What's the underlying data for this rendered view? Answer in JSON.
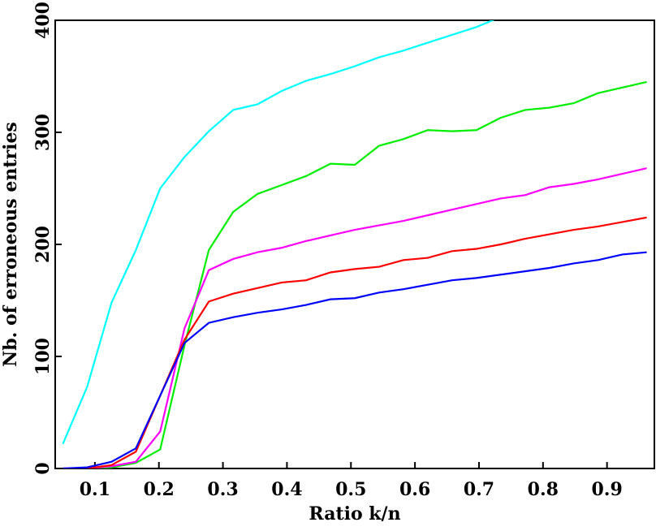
{
  "chart_data": {
    "type": "line",
    "xlabel": "Ratio k/n",
    "ylabel": "Nb. of erroneous entries",
    "x": [
      0.05,
      0.088,
      0.126,
      0.164,
      0.202,
      0.24,
      0.278,
      0.316,
      0.354,
      0.392,
      0.43,
      0.468,
      0.506,
      0.544,
      0.582,
      0.62,
      0.658,
      0.696,
      0.734,
      0.772,
      0.81,
      0.848,
      0.886,
      0.924,
      0.962
    ],
    "series": [
      {
        "color": "#00ffff",
        "values": [
          22,
          73,
          148,
          195,
          250,
          278,
          301,
          320,
          325,
          337,
          346,
          352,
          359,
          367,
          373,
          380,
          387,
          394,
          403,
          null,
          null,
          null,
          null,
          null,
          null
        ]
      },
      {
        "color": "#00ee00",
        "values": [
          0,
          0,
          1,
          5,
          17,
          110,
          195,
          229,
          245,
          253,
          261,
          272,
          271,
          288,
          294,
          302,
          301,
          302,
          313,
          320,
          322,
          326,
          335,
          340,
          345
        ]
      },
      {
        "color": "#ff00ff",
        "values": [
          0,
          0,
          2,
          6,
          33,
          125,
          177,
          187,
          193,
          197,
          203,
          208,
          213,
          217,
          221,
          226,
          231,
          236,
          241,
          244,
          251,
          254,
          258,
          263,
          268
        ]
      },
      {
        "color": "#ff0000",
        "values": [
          0,
          0,
          3,
          15,
          65,
          115,
          149,
          156,
          161,
          166,
          168,
          175,
          178,
          180,
          186,
          188,
          194,
          196,
          200,
          205,
          209,
          213,
          216,
          220,
          224
        ]
      },
      {
        "color": "#0000ff",
        "values": [
          0,
          1,
          6,
          18,
          65,
          112,
          130,
          135,
          139,
          142,
          146,
          151,
          152,
          157,
          160,
          164,
          168,
          170,
          173,
          176,
          179,
          183,
          186,
          191,
          193
        ]
      }
    ],
    "xlim": [
      0.038,
      0.974
    ],
    "ylim": [
      0,
      400
    ],
    "xticks": [
      0.1,
      0.2,
      0.3,
      0.4,
      0.5,
      0.6,
      0.7,
      0.8,
      0.9
    ],
    "yticks": [
      0,
      100,
      200,
      300,
      400
    ]
  }
}
